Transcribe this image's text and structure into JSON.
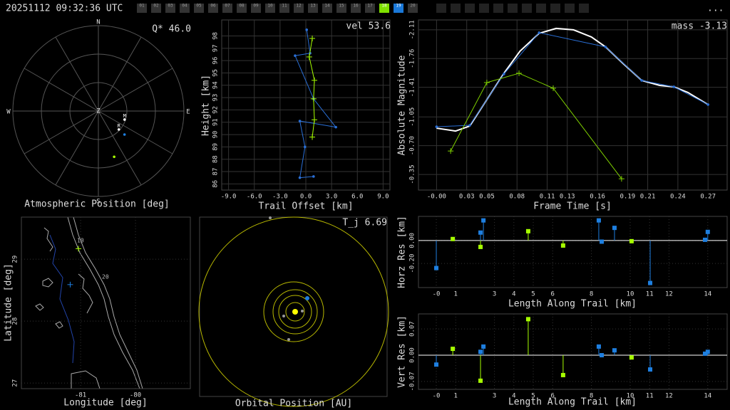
{
  "header": {
    "timestamp": "20251112 09:32:36 UTC",
    "stations": [
      "01",
      "02",
      "03",
      "04",
      "05",
      "06",
      "07",
      "08",
      "09",
      "10",
      "11",
      "12",
      "13",
      "14",
      "15",
      "16",
      "17",
      "18",
      "19",
      "20"
    ],
    "highlight_colors": [
      null,
      null,
      null,
      null,
      null,
      null,
      null,
      null,
      null,
      null,
      null,
      null,
      null,
      null,
      null,
      null,
      null,
      "#7fe000",
      "#1a78d8",
      null
    ],
    "menu": "..."
  },
  "chart_data": [
    {
      "type": "polar",
      "annotation": "Q* 46.0",
      "xlabel": "Atmospheric Position [deg]",
      "directions": [
        "N",
        "E",
        "S",
        "W"
      ],
      "center_label": "Z",
      "rlim": [
        0,
        90
      ],
      "rticks": [
        30,
        60,
        90
      ],
      "theta_ticks": [
        0,
        30,
        60,
        90,
        120,
        150,
        180,
        210,
        240,
        270,
        300,
        330
      ],
      "series": [
        {
          "color": "#ffffff",
          "labels": [
            "M",
            "R"
          ],
          "r": [
            29,
            29
          ],
          "theta": [
            108,
            132
          ]
        },
        {
          "color": "#1e7fe0",
          "r": [
            37
          ],
          "theta": [
            132
          ]
        },
        {
          "color": "#a6ff00",
          "r": [
            51
          ],
          "theta": [
            161
          ]
        }
      ]
    },
    {
      "type": "line",
      "annotation": "vel 53.6",
      "xlabel": "Trail Offset [km]",
      "ylabel": "Height [km]",
      "xlim": [
        -9.8,
        9.8
      ],
      "ylim": [
        85.5,
        99.3
      ],
      "grid": true,
      "xticks": [
        {
          "value": -9,
          "label": "-9.0"
        },
        {
          "value": -6,
          "label": "-6.0"
        },
        {
          "value": -3,
          "label": "-3.0"
        },
        {
          "value": 0,
          "label": "0.0"
        },
        {
          "value": 3,
          "label": "3.0"
        },
        {
          "value": 6,
          "label": "6.0"
        },
        {
          "value": 9,
          "label": "9.0"
        }
      ],
      "yticks": [
        86,
        87,
        88,
        89,
        90,
        91,
        92,
        93,
        94,
        95,
        96,
        97,
        98
      ],
      "series": [
        {
          "color": "#2a6fd6",
          "marker": "o",
          "x": [
            0.1,
            0.5,
            -1.25,
            0.9,
            3.5,
            -0.7,
            -0.1,
            -0.7,
            0.9
          ],
          "values": [
            98.5,
            96.6,
            96.4,
            92.9,
            90.6,
            91.1,
            89.0,
            86.5,
            86.6
          ]
        },
        {
          "color": "#a6ff00",
          "marker": "+",
          "x": [
            0.75,
            0.4,
            1.0,
            0.9,
            1.0,
            0.75
          ],
          "values": [
            97.8,
            96.3,
            94.4,
            92.9,
            91.2,
            89.8
          ]
        }
      ]
    },
    {
      "type": "line",
      "annotation": "mass -3.13",
      "xlabel": "Frame Time [s]",
      "ylabel": "Absolute Magnitude",
      "xlim": [
        -0.018,
        0.289
      ],
      "ylim": [
        -0.16,
        -2.23
      ],
      "grid": true,
      "xticks": [
        {
          "value": 0,
          "label": "-0.00"
        },
        0.03,
        0.05,
        0.08,
        0.11,
        0.13,
        0.16,
        0.19,
        0.21,
        0.24,
        0.27
      ],
      "yticks": [
        -0.35,
        {
          "value": -0.7,
          "label": "-0.70"
        },
        -1.05,
        -1.41,
        -1.76,
        -2.11
      ],
      "series": [
        {
          "color": "#ffffff",
          "width": 2,
          "x": [
            0,
            0.019,
            0.033,
            0.05,
            0.067,
            0.083,
            0.102,
            0.119,
            0.136,
            0.154,
            0.168,
            0.186,
            0.204,
            0.222,
            0.236,
            0.25,
            0.27
          ],
          "values": [
            -0.913,
            -0.878,
            -0.939,
            -1.26,
            -1.581,
            -1.85,
            -2.067,
            -2.127,
            -2.11,
            -2.023,
            -1.902,
            -1.694,
            -1.494,
            -1.433,
            -1.416,
            -1.347,
            -1.2
          ]
        },
        {
          "color": "#2a6fd6",
          "marker": "o",
          "x": [
            0,
            0.033,
            0.067,
            0.102,
            0.168,
            0.204,
            0.236,
            0.27
          ],
          "values": [
            -0.93,
            -0.948,
            -1.572,
            -2.075,
            -1.902,
            -1.494,
            -1.416,
            -1.2
          ]
        },
        {
          "color": "#7fd000",
          "marker": "+",
          "x": [
            0.014,
            0.05,
            0.082,
            0.116,
            0.184
          ],
          "values": [
            -0.635,
            -1.468,
            -1.581,
            -1.399,
            -0.297
          ]
        }
      ]
    },
    {
      "type": "map",
      "xlabel": "Longitude [deg]",
      "ylabel": "Latitude [deg]",
      "xlim": [
        -82.08,
        -79.0
      ],
      "ylim": [
        26.91,
        29.68
      ],
      "grid": true,
      "xticks": [
        -81,
        -80
      ],
      "yticks": [
        27,
        28,
        29
      ],
      "annotations": [
        "10",
        "20"
      ],
      "series": [
        {
          "color": "#a6ff00",
          "marker": "+",
          "x": [
            -81.04
          ],
          "values": [
            29.17
          ]
        },
        {
          "color": "#1e7fe0",
          "marker": "+",
          "x": [
            -81.19
          ],
          "values": [
            28.59
          ]
        }
      ]
    },
    {
      "type": "orbit",
      "annotation": "T_j 6.69",
      "xlabel": "Orbital Position [AU]"
    },
    {
      "type": "stem",
      "xlabel": "Length Along Trail [km]",
      "ylabel": "Horz Res [km]",
      "xlim": [
        -0.92,
        15.0
      ],
      "ylim": [
        -0.41,
        0.21
      ],
      "grid": true,
      "xticks": [
        {
          "value": 0,
          "label": "-0"
        },
        1,
        3,
        4,
        5,
        6,
        8,
        10,
        11,
        12,
        14
      ],
      "yticks": [
        {
          "value": -0.2,
          "label": "-0.20"
        },
        {
          "value": 0,
          "label": "0.00"
        }
      ],
      "series": [
        {
          "color": "#1e7fe0",
          "marker": "s",
          "x": [
            0,
            2.43,
            2.28,
            8.38,
            9.19,
            8.53,
            11.03,
            13.86,
            14.0
          ],
          "values": [
            -0.24,
            0.175,
            0.069,
            0.175,
            0.11,
            -0.01,
            -0.37,
            0.006,
            0.075
          ]
        },
        {
          "color": "#a6ff00",
          "marker": "s",
          "x": [
            0.85,
            2.28,
            4.74,
            6.54,
            10.07
          ],
          "values": [
            0.013,
            -0.056,
            0.081,
            -0.044,
            -0.006
          ]
        }
      ]
    },
    {
      "type": "stem",
      "xlabel": "Length Along Trail [km]",
      "ylabel": "Vert Res [km]",
      "xlim": [
        -0.92,
        15.0
      ],
      "ylim": [
        -0.091,
        0.11
      ],
      "grid": true,
      "xticks": [
        {
          "value": 0,
          "label": "-0"
        },
        1,
        3,
        4,
        5,
        6,
        8,
        10,
        11,
        12,
        14
      ],
      "yticks": [
        {
          "value": -0.07,
          "label": "-0.07"
        },
        {
          "value": 0,
          "label": "0.00"
        },
        0.07
      ],
      "series": [
        {
          "color": "#1e7fe0",
          "marker": "s",
          "x": [
            0,
            2.43,
            2.28,
            8.38,
            9.19,
            8.53,
            11.03,
            13.86,
            14.0
          ],
          "values": [
            -0.025,
            0.023,
            0.009,
            0.023,
            0.013,
            0,
            -0.038,
            0.004,
            0.009
          ]
        },
        {
          "color": "#a6ff00",
          "marker": "s",
          "x": [
            0.85,
            2.28,
            4.74,
            6.54,
            10.07
          ],
          "values": [
            0.017,
            -0.068,
            0.096,
            -0.053,
            -0.006
          ]
        }
      ]
    }
  ]
}
